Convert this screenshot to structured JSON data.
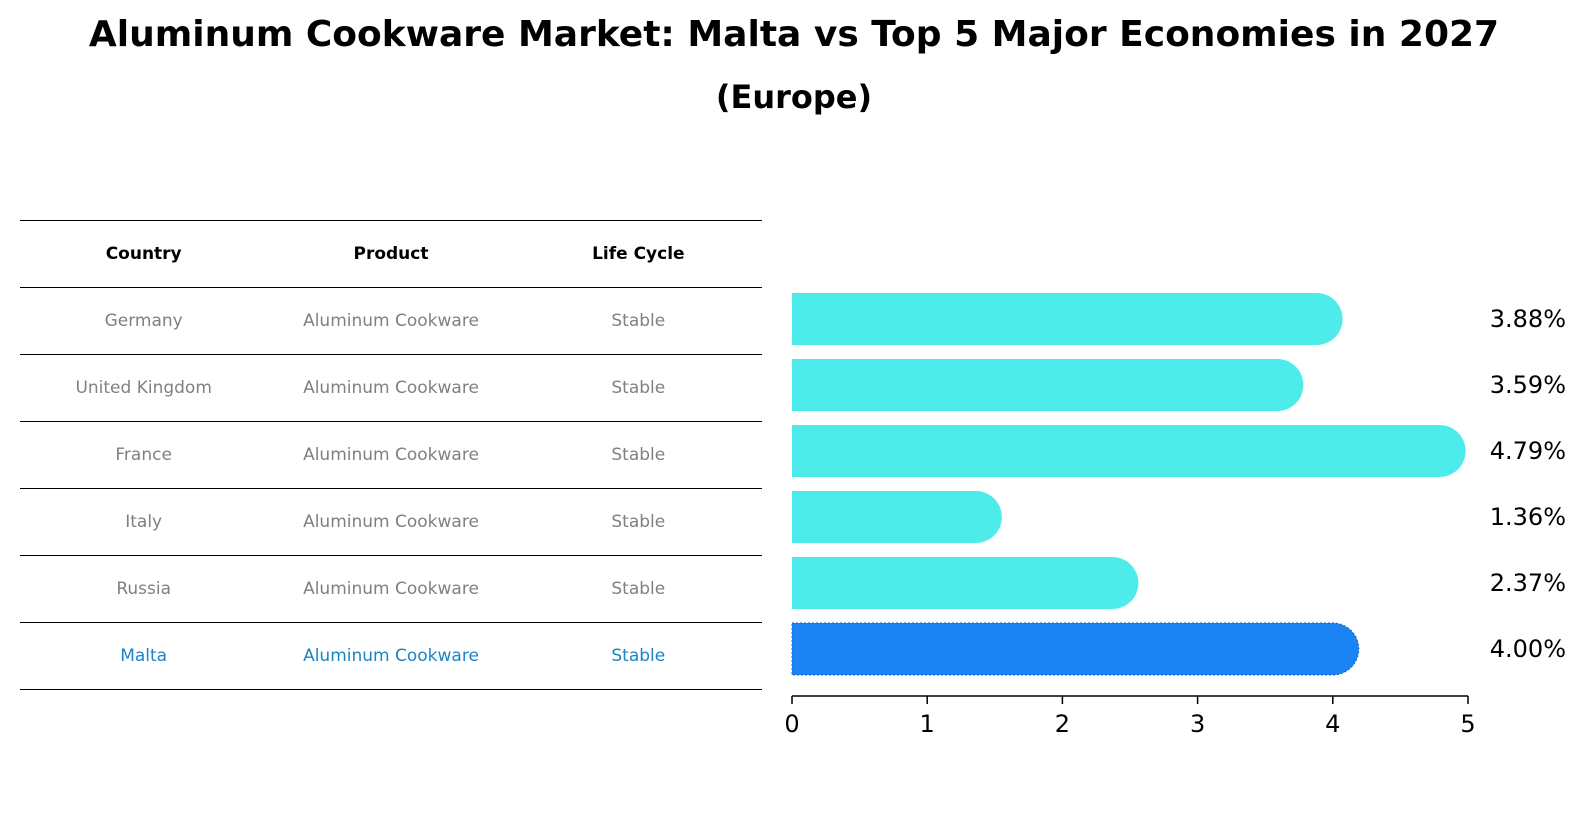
{
  "title": "Aluminum Cookware Market: Malta vs Top 5 Major Economies in 2027",
  "subtitle": "(Europe)",
  "table": {
    "headers": [
      "Country",
      "Product",
      "Life Cycle"
    ],
    "rows": [
      [
        "Germany",
        "Aluminum Cookware",
        "Stable"
      ],
      [
        "United Kingdom",
        "Aluminum Cookware",
        "Stable"
      ],
      [
        "France",
        "Aluminum Cookware",
        "Stable"
      ],
      [
        "Italy",
        "Aluminum Cookware",
        "Stable"
      ],
      [
        "Russia",
        "Aluminum Cookware",
        "Stable"
      ],
      [
        "Malta",
        "Aluminum Cookware",
        "Stable"
      ]
    ]
  },
  "colors": {
    "bar": "#4deceb",
    "highlight_bar": "#1a84f4",
    "highlight_text": "#1a84c7",
    "row_text": "#808080"
  },
  "chart_data": {
    "type": "bar",
    "orientation": "horizontal",
    "title": "Aluminum Cookware Market: Malta vs Top 5 Major Economies in 2027",
    "subtitle": "(Europe)",
    "categories": [
      "Germany",
      "United Kingdom",
      "France",
      "Italy",
      "Russia",
      "Malta"
    ],
    "values": [
      3.88,
      3.59,
      4.79,
      1.36,
      2.37,
      4.0
    ],
    "value_labels": [
      "3.88%",
      "3.59%",
      "4.79%",
      "1.36%",
      "2.37%",
      "4.00%"
    ],
    "highlight": "Malta",
    "xlim": [
      0,
      5
    ],
    "xticks": [
      0,
      1,
      2,
      3,
      4,
      5
    ],
    "xlabel": "",
    "ylabel": "",
    "grid": false
  }
}
